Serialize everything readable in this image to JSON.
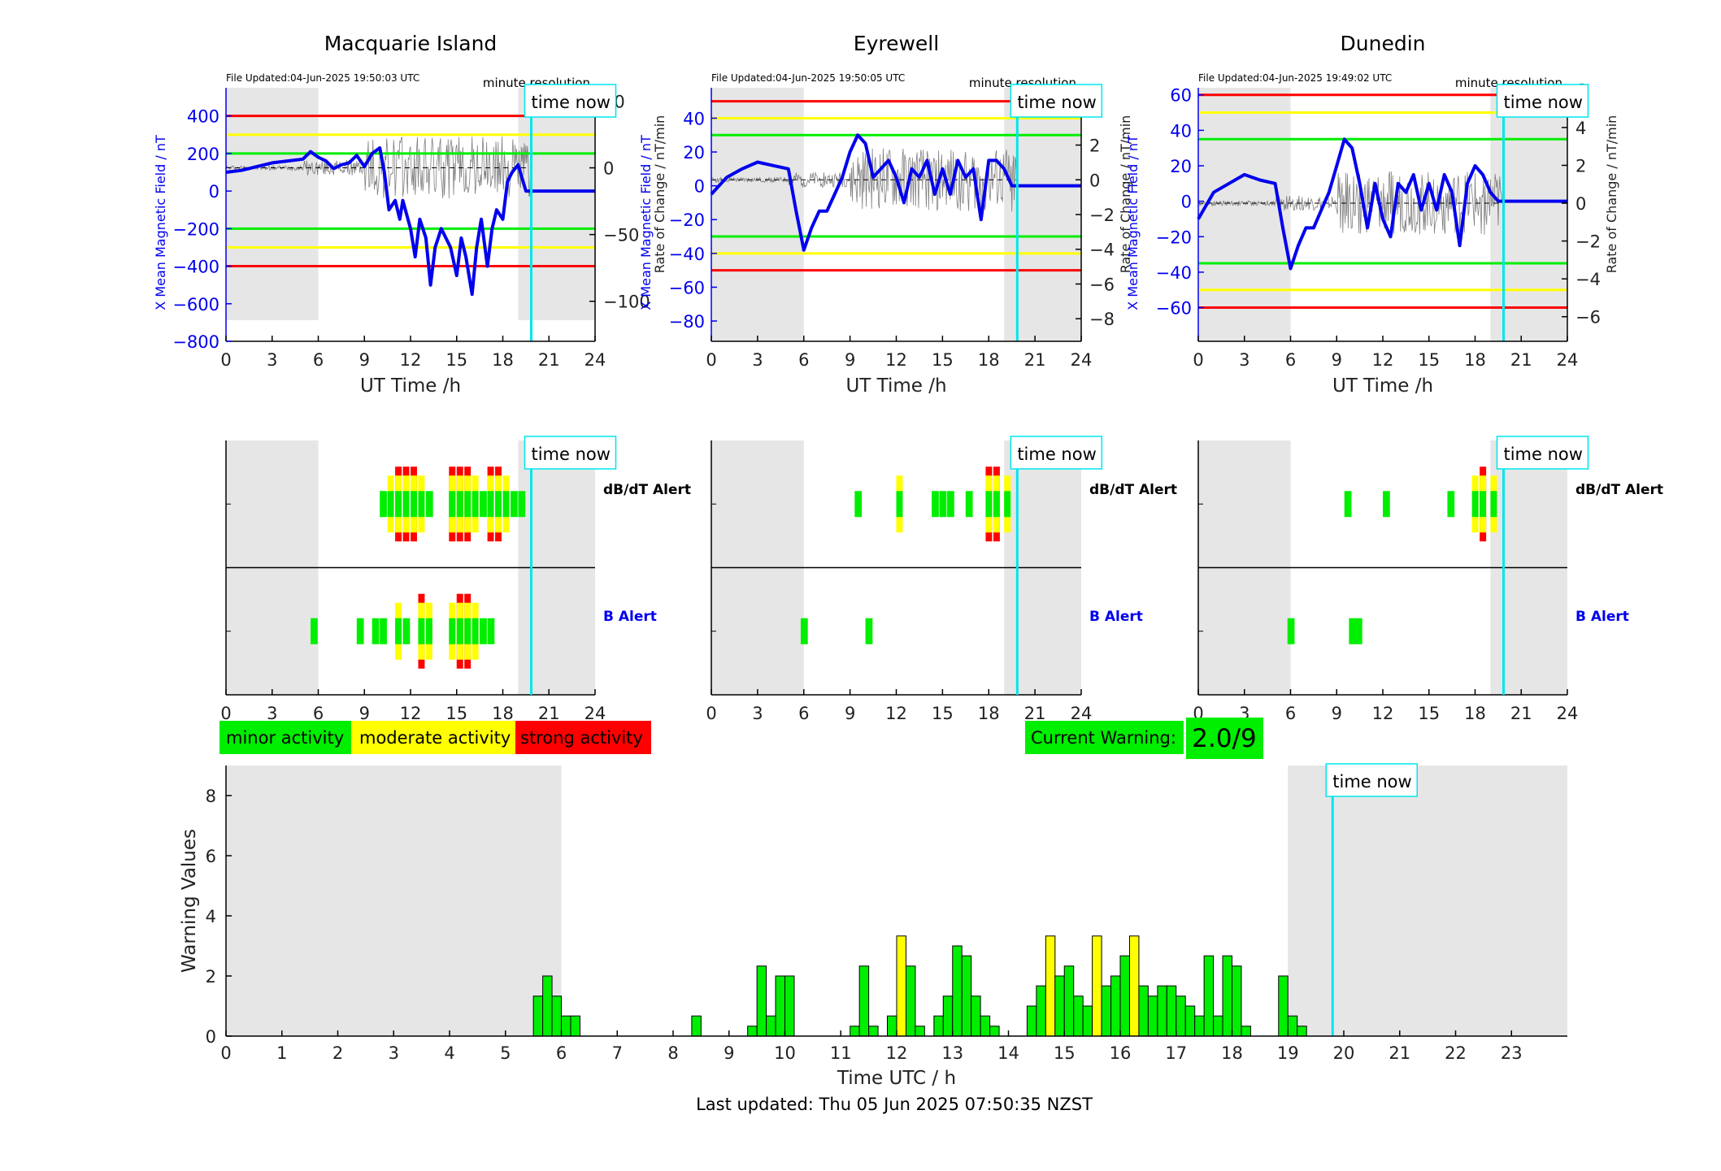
{
  "footer": {
    "last_updated": "Last updated: Thu 05 Jun 2025 07:50:35 NZST"
  },
  "legend": {
    "minor": "minor activity",
    "moderate": "moderate activity",
    "strong": "strong activity",
    "colors": {
      "minor": "#00ee00",
      "moderate": "#ffff00",
      "strong": "#ff0000"
    }
  },
  "current_warning": {
    "label": "Current Warning:",
    "value": "2.0/9"
  },
  "labels": {
    "time_now": "time now",
    "minute_resolution": "minute resolution",
    "dbdt_alert": "dB/dT Alert",
    "b_alert": "B Alert"
  },
  "chart_data": [
    {
      "type": "line",
      "title": "Macquarie Island",
      "file_updated": "File Updated:04-Jun-2025 19:50:03 UTC",
      "xlabel": "UT Time /h",
      "ylabel": "X Mean Magnetic Field / nT",
      "y2label": "Rate of Change / nT/min",
      "xlim": [
        0,
        24
      ],
      "ylim": [
        -800,
        550
      ],
      "y2lim": [
        -130,
        60
      ],
      "yticks": [
        400,
        200,
        0,
        -200,
        -400,
        -600,
        -800
      ],
      "y2ticks": [
        50,
        0,
        -50,
        -100
      ],
      "thresholds": {
        "red": 400,
        "yellow": 300,
        "green": 200
      },
      "night_shade": [
        [
          0,
          6
        ],
        [
          19,
          24
        ]
      ],
      "time_now": 19.85,
      "series": [
        {
          "x": [
            0,
            1,
            2,
            3,
            4,
            5,
            5.5,
            6,
            6.5,
            7,
            7.5,
            8,
            8.5,
            9,
            9.5,
            10,
            10.3,
            10.6,
            11,
            11.3,
            11.5,
            12,
            12.3,
            12.6,
            13,
            13.3,
            13.6,
            14,
            14.3,
            14.6,
            15,
            15.3,
            15.6,
            16,
            16.3,
            16.6,
            17,
            17.3,
            17.6,
            18,
            18.3,
            18.6,
            19,
            19.5,
            24
          ],
          "values": [
            100,
            110,
            130,
            150,
            160,
            170,
            210,
            180,
            160,
            120,
            140,
            150,
            190,
            130,
            200,
            230,
            100,
            -100,
            -50,
            -150,
            -50,
            -200,
            -350,
            -150,
            -250,
            -500,
            -300,
            -200,
            -250,
            -300,
            -450,
            -250,
            -350,
            -550,
            -300,
            -150,
            -400,
            -200,
            -100,
            -150,
            50,
            100,
            140,
            0,
            0
          ]
        }
      ]
    },
    {
      "type": "line",
      "title": "Eyrewell",
      "file_updated": "File Updated:04-Jun-2025 19:50:05 UTC",
      "xlabel": "UT Time /h",
      "ylabel": "X Mean Magnetic Field / nT",
      "y2label": "Rate of Change / nT/min",
      "xlim": [
        0,
        24
      ],
      "ylim": [
        -92,
        58
      ],
      "y2lim": [
        -9.3,
        5.3
      ],
      "yticks": [
        40,
        20,
        0,
        -20,
        -40,
        -60,
        -80
      ],
      "y2ticks": [
        4,
        2,
        0,
        -2,
        -4,
        -6,
        -8
      ],
      "thresholds": {
        "red": 50,
        "yellow": 40,
        "green": 30
      },
      "night_shade": [
        [
          0,
          6
        ],
        [
          19,
          24
        ]
      ],
      "time_now": 19.85,
      "series": [
        {
          "x": [
            0,
            1,
            2,
            3,
            4,
            5,
            5.5,
            6,
            6.5,
            7,
            7.5,
            8,
            8.5,
            9,
            9.5,
            10,
            10.5,
            11,
            11.5,
            12,
            12.5,
            13,
            13.5,
            14,
            14.5,
            15,
            15.5,
            16,
            16.5,
            17,
            17.5,
            18,
            18.5,
            19,
            19.5,
            24
          ],
          "values": [
            -5,
            5,
            10,
            14,
            12,
            10,
            -15,
            -38,
            -25,
            -15,
            -15,
            -5,
            5,
            20,
            30,
            25,
            5,
            10,
            15,
            5,
            -10,
            10,
            5,
            15,
            -5,
            10,
            -5,
            15,
            5,
            10,
            -20,
            15,
            15,
            10,
            0,
            0
          ]
        }
      ]
    },
    {
      "type": "line",
      "title": "Dunedin",
      "file_updated": "File Updated:04-Jun-2025 19:49:02 UTC",
      "xlabel": "UT Time /h",
      "ylabel": "X Mean Magnetic Field / nT",
      "y2label": "Rate of Change / nT/min",
      "xlim": [
        0,
        24
      ],
      "ylim": [
        -79,
        64
      ],
      "y2lim": [
        -7.3,
        6.1
      ],
      "yticks": [
        60,
        40,
        20,
        0,
        -20,
        -40,
        -60
      ],
      "y2ticks": [
        6,
        4,
        2,
        0,
        -2,
        -4,
        -6
      ],
      "thresholds": {
        "red": 60,
        "yellow": 50,
        "green": 35
      },
      "night_shade": [
        [
          0,
          6
        ],
        [
          19,
          24
        ]
      ],
      "time_now": 19.85,
      "series": [
        {
          "x": [
            0,
            1,
            2,
            3,
            4,
            5,
            5.5,
            6,
            6.5,
            7,
            7.5,
            8,
            8.5,
            9,
            9.5,
            10,
            10.5,
            11,
            11.5,
            12,
            12.5,
            13,
            13.5,
            14,
            14.5,
            15,
            15.5,
            16,
            16.5,
            17,
            17.5,
            18,
            18.5,
            19,
            19.5,
            24
          ],
          "values": [
            -10,
            5,
            10,
            15,
            12,
            10,
            -15,
            -38,
            -25,
            -15,
            -15,
            -5,
            5,
            20,
            35,
            30,
            10,
            -15,
            10,
            -10,
            -20,
            10,
            5,
            15,
            -5,
            10,
            -5,
            15,
            5,
            -25,
            10,
            20,
            15,
            5,
            0,
            0
          ]
        }
      ]
    },
    {
      "type": "alert",
      "title": "Macquarie Island",
      "series": [
        {
          "name": "dB/dT Alert",
          "blocks": [
            [
              10,
              "m"
            ],
            [
              10.5,
              "y"
            ],
            [
              11,
              "s"
            ],
            [
              11.5,
              "s"
            ],
            [
              12,
              "s"
            ],
            [
              12.5,
              "y"
            ],
            [
              13,
              "m"
            ],
            [
              14.5,
              "s"
            ],
            [
              15,
              "s"
            ],
            [
              15.5,
              "s"
            ],
            [
              16,
              "y"
            ],
            [
              16.5,
              "m"
            ],
            [
              17,
              "s"
            ],
            [
              17.5,
              "s"
            ],
            [
              18,
              "y"
            ],
            [
              18.5,
              "m"
            ],
            [
              19,
              "m"
            ]
          ]
        },
        {
          "name": "B Alert",
          "blocks": [
            [
              5.5,
              "m"
            ],
            [
              8.5,
              "m"
            ],
            [
              9.5,
              "m"
            ],
            [
              10,
              "m"
            ],
            [
              11,
              "y"
            ],
            [
              11.5,
              "m"
            ],
            [
              12.5,
              "s"
            ],
            [
              13,
              "y"
            ],
            [
              14.5,
              "y"
            ],
            [
              15,
              "s"
            ],
            [
              15.5,
              "s"
            ],
            [
              16,
              "y"
            ],
            [
              16.5,
              "m"
            ],
            [
              17,
              "m"
            ]
          ]
        }
      ]
    },
    {
      "type": "alert",
      "title": "Eyrewell",
      "series": [
        {
          "name": "dB/dT Alert",
          "blocks": [
            [
              9.3,
              "m"
            ],
            [
              12,
              "y"
            ],
            [
              14.3,
              "m"
            ],
            [
              14.8,
              "m"
            ],
            [
              15.3,
              "m"
            ],
            [
              16.5,
              "m"
            ],
            [
              17.8,
              "s"
            ],
            [
              18.3,
              "s"
            ],
            [
              19,
              "y"
            ]
          ]
        },
        {
          "name": "B Alert",
          "blocks": [
            [
              5.8,
              "m"
            ],
            [
              10,
              "m"
            ]
          ]
        }
      ]
    },
    {
      "type": "alert",
      "title": "Dunedin",
      "series": [
        {
          "name": "dB/dT Alert",
          "blocks": [
            [
              9.5,
              "m"
            ],
            [
              12,
              "m"
            ],
            [
              16.2,
              "m"
            ],
            [
              17.8,
              "y"
            ],
            [
              18.3,
              "s"
            ],
            [
              19,
              "y"
            ]
          ]
        },
        {
          "name": "B Alert",
          "blocks": [
            [
              5.8,
              "m"
            ],
            [
              9.8,
              "m"
            ],
            [
              10.2,
              "m"
            ]
          ]
        }
      ]
    },
    {
      "type": "bar",
      "title": "",
      "xlabel": "Time UTC / h",
      "ylabel": "Warning Values",
      "xlim": [
        0,
        24
      ],
      "ylim": [
        0,
        9
      ],
      "yticks": [
        0,
        2,
        4,
        6,
        8
      ],
      "night_shade": [
        [
          0,
          6
        ],
        [
          19,
          24
        ]
      ],
      "time_now": 19.8,
      "bar_width_h": 0.1667,
      "x": [
        5.5,
        5.667,
        5.833,
        6,
        6.167,
        8.333,
        9.333,
        9.5,
        9.667,
        9.833,
        10,
        11.167,
        11.333,
        11.5,
        11.833,
        12,
        12.167,
        12.333,
        12.667,
        12.833,
        13,
        13.167,
        13.333,
        13.5,
        13.667,
        14.333,
        14.5,
        14.667,
        14.833,
        15,
        15.167,
        15.333,
        15.5,
        15.667,
        15.833,
        16,
        16.167,
        16.333,
        16.5,
        16.667,
        16.833,
        17,
        17.167,
        17.333,
        17.5,
        17.667,
        17.833,
        18,
        18.167,
        18.333,
        18.833,
        19,
        19.167
      ],
      "values": [
        1.33,
        2,
        1.33,
        0.67,
        0.67,
        0.67,
        0.33,
        2.33,
        0.67,
        2,
        2,
        0.33,
        2.33,
        0.33,
        0.67,
        3.33,
        2.33,
        0.33,
        0.67,
        1.33,
        3,
        2.67,
        1.33,
        0.67,
        0.33,
        1,
        1.67,
        3.33,
        2,
        2.33,
        1.33,
        1,
        3.33,
        1.67,
        2,
        2.67,
        3.33,
        1.67,
        1.33,
        1.67,
        1.67,
        1.33,
        1,
        0.67,
        2.67,
        0.67,
        2.67,
        2.33,
        0.33,
        0,
        2,
        0.67,
        0.33
      ],
      "levels": [
        "m",
        "m",
        "m",
        "m",
        "m",
        "m",
        "m",
        "m",
        "m",
        "m",
        "m",
        "m",
        "m",
        "m",
        "m",
        "y",
        "m",
        "m",
        "m",
        "m",
        "m",
        "m",
        "m",
        "m",
        "m",
        "m",
        "m",
        "y",
        "m",
        "m",
        "m",
        "m",
        "y",
        "m",
        "m",
        "m",
        "y",
        "m",
        "m",
        "m",
        "m",
        "m",
        "m",
        "m",
        "m",
        "m",
        "m",
        "m",
        "m",
        "m",
        "m",
        "m",
        "m"
      ]
    }
  ]
}
